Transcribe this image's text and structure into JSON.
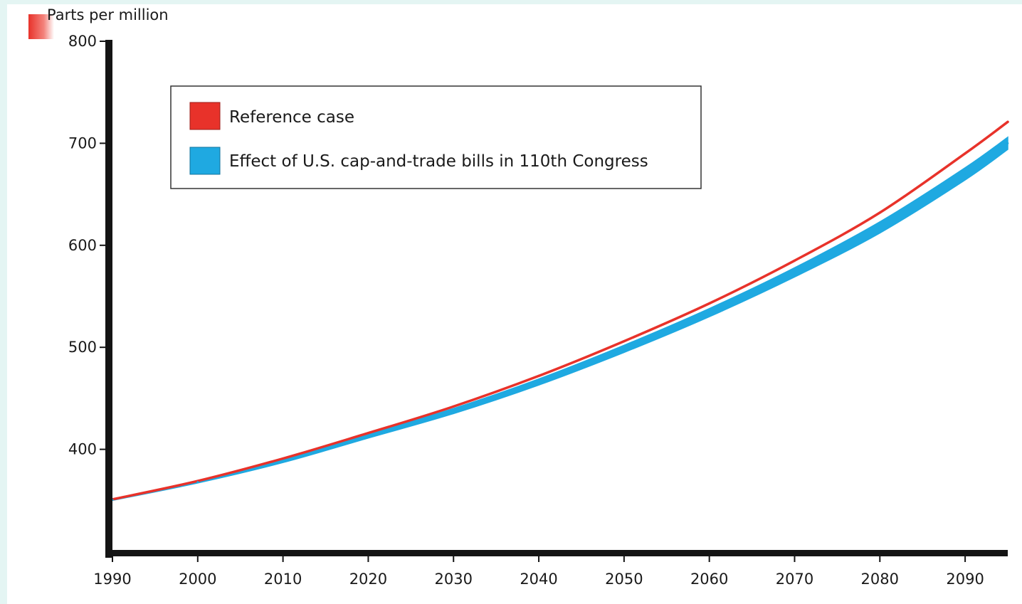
{
  "chart_data": {
    "type": "line",
    "title": "",
    "xlabel": "",
    "ylabel": "Parts per million",
    "xlim": [
      1990,
      2095
    ],
    "ylim": [
      300,
      800
    ],
    "x_ticks": [
      1990,
      2000,
      2010,
      2020,
      2030,
      2040,
      2050,
      2060,
      2070,
      2080,
      2090
    ],
    "y_ticks": [
      400,
      500,
      600,
      700,
      800
    ],
    "grid": false,
    "legend_placement": "top-left",
    "x": [
      1990,
      2000,
      2010,
      2020,
      2030,
      2040,
      2050,
      2060,
      2070,
      2080,
      2090,
      2095
    ],
    "series": [
      {
        "name": "Reference case",
        "color": "#e8322a",
        "values": [
          351,
          369,
          391,
          416,
          442,
          472,
          506,
          543,
          585,
          632,
          690,
          721
        ]
      },
      {
        "name": "Effect of U.S. cap-and-trade bills in 110th Congress",
        "color": "#1fa9e1",
        "type": "band",
        "upper": [
          351,
          369,
          390,
          415,
          440,
          469,
          502,
          538,
          578,
          623,
          676,
          706
        ],
        "lower": [
          350,
          367,
          387,
          411,
          435,
          463,
          495,
          530,
          569,
          612,
          664,
          694
        ]
      }
    ]
  },
  "decor": {
    "corner_marker_color": "#e8322a",
    "axis_color": "#141414"
  }
}
